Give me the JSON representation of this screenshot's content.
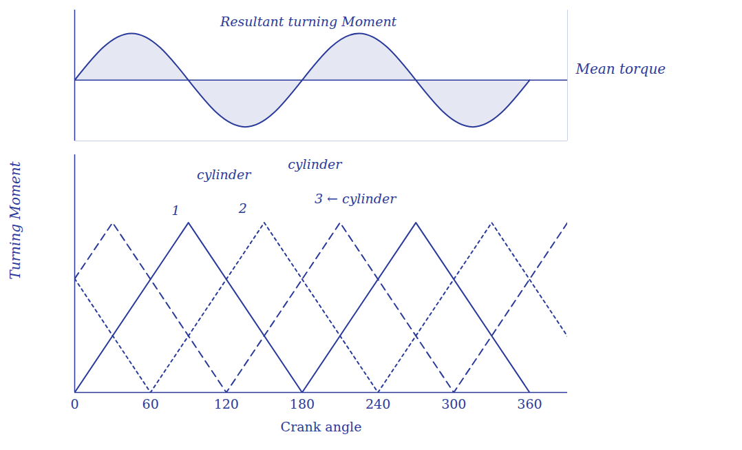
{
  "chart_data": [
    {
      "type": "line",
      "tick_labels": false,
      "color": "#2a3a9a",
      "xlim": [
        0,
        390
      ],
      "xticks": [],
      "ylim": [
        -1.3,
        1.5
      ],
      "yticks": [],
      "mean": 0,
      "mean_label": "Mean torque",
      "series": [
        {
          "name": "Resultant turning Moment",
          "color": "#2a3a9a",
          "line_style": "solid",
          "x": [
            0,
            22.5,
            45,
            67.5,
            90,
            112.5,
            135,
            157.5,
            180,
            202.5,
            225,
            247.5,
            270,
            292.5,
            315,
            337.5,
            360
          ],
          "values": [
            0,
            0.7,
            1,
            0.7,
            0,
            -0.7,
            -1,
            -0.7,
            0,
            0.7,
            1,
            0.7,
            0,
            -0.7,
            -1,
            -0.7,
            0
          ]
        }
      ],
      "annotations": [
        {
          "text": "Resultant turning Moment",
          "x": 185,
          "y": 1.25
        }
      ]
    },
    {
      "type": "line",
      "tick_labels": "x",
      "color": "#2a3a9a",
      "x_label": "Crank angle",
      "y_label": "Turning Moment",
      "xlim": [
        0,
        390
      ],
      "xticks": [
        0,
        60,
        120,
        180,
        240,
        300,
        360
      ],
      "ylim": [
        0,
        1.4
      ],
      "yticks": [],
      "series": [
        {
          "name": "1",
          "color": "#2a3a9a",
          "line_style": "solid",
          "x": [
            0,
            90,
            180,
            270,
            360
          ],
          "values": [
            0,
            1,
            0,
            1,
            0
          ]
        },
        {
          "name": "2",
          "color": "#2a3a9a",
          "line_style": "dashed",
          "x": [
            0,
            30,
            120,
            210,
            300,
            390
          ],
          "values": [
            0.67,
            1,
            0,
            1,
            0,
            1
          ]
        },
        {
          "name": "3",
          "color": "#2a3a9a",
          "line_style": "dotted",
          "x": [
            0,
            60,
            150,
            240,
            330,
            390
          ],
          "values": [
            0.67,
            0,
            1,
            0,
            1,
            0.33
          ]
        }
      ],
      "annotations": [
        {
          "text": "1",
          "x": 80,
          "y": 1.07
        },
        {
          "text": "cylinder",
          "x": 118,
          "y": 1.28
        },
        {
          "text": "2",
          "x": 133,
          "y": 1.08
        },
        {
          "text": "cylinder",
          "x": 190,
          "y": 1.34
        },
        {
          "text": "3 ← cylinder",
          "x": 222,
          "y": 1.14
        }
      ]
    }
  ]
}
